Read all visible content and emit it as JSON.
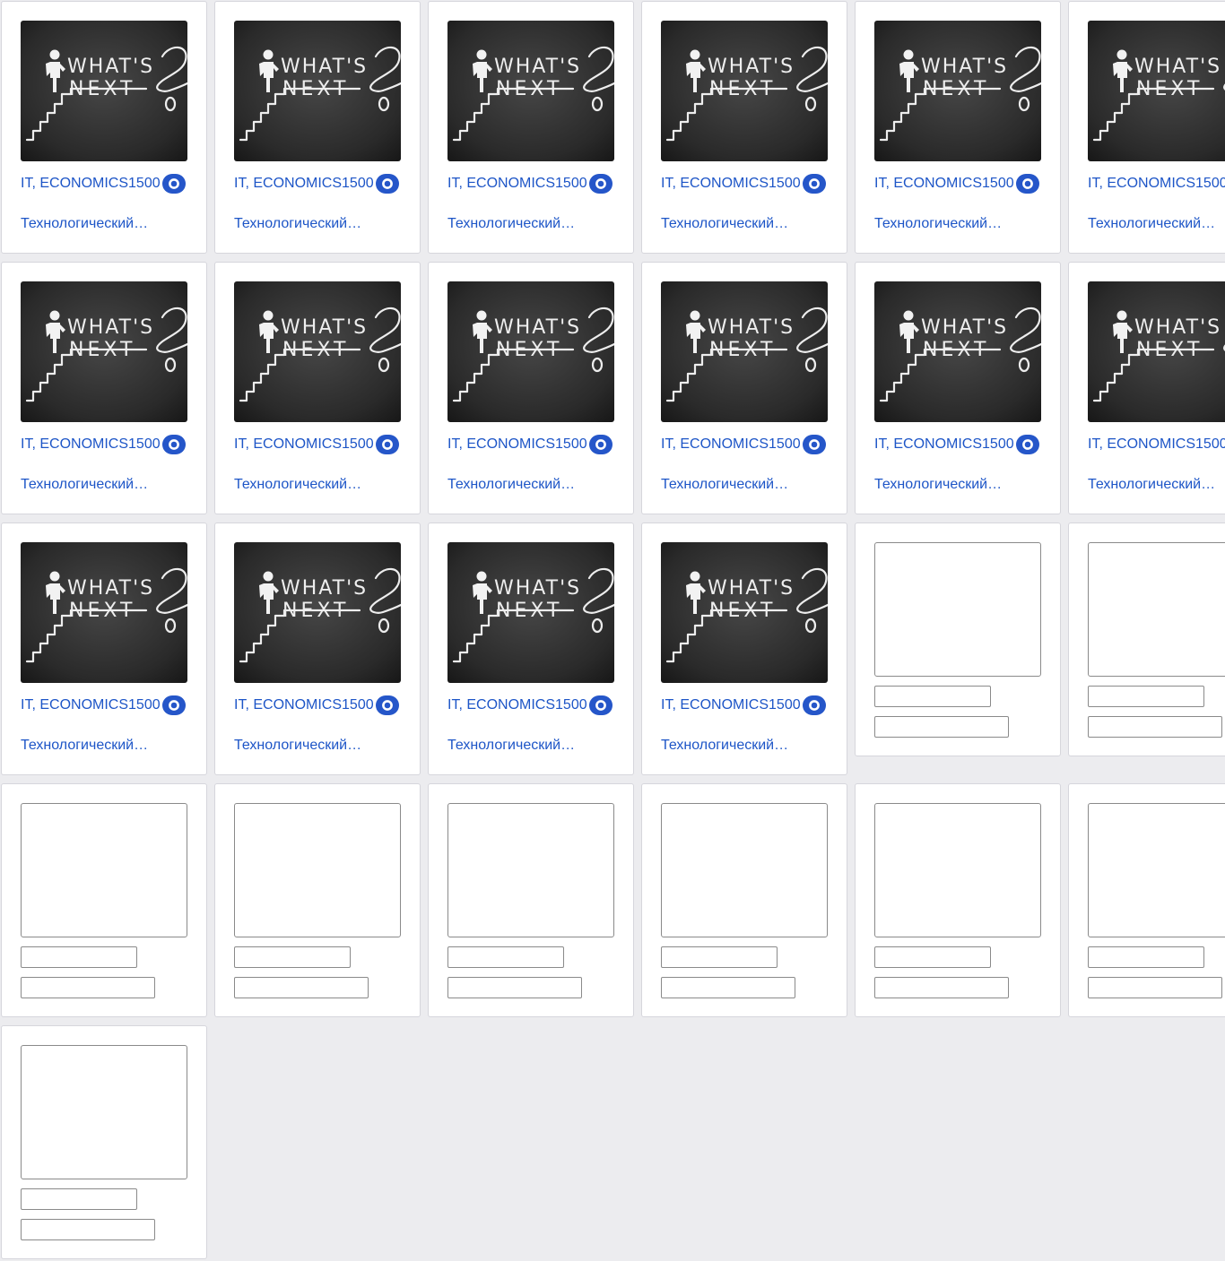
{
  "colors": {
    "page_background": "#ececef",
    "link": "#1d55c7",
    "badge": "#2556c9"
  },
  "thumbnail": {
    "text_line1": "WHAT'S",
    "text_line2": "NEXT",
    "glyph_question": "?",
    "icon": "chalkboard-whats-next"
  },
  "cards": [
    {
      "state": "loaded",
      "tags": "IT, ECONOMICS",
      "views": "1500",
      "title": "Технологический…"
    },
    {
      "state": "loaded",
      "tags": "IT, ECONOMICS",
      "views": "1500",
      "title": "Технологический…"
    },
    {
      "state": "loaded",
      "tags": "IT, ECONOMICS",
      "views": "1500",
      "title": "Технологический…"
    },
    {
      "state": "loaded",
      "tags": "IT, ECONOMICS",
      "views": "1500",
      "title": "Технологический…"
    },
    {
      "state": "loaded",
      "tags": "IT, ECONOMICS",
      "views": "1500",
      "title": "Технологический…"
    },
    {
      "state": "loaded",
      "tags": "IT, ECONOMICS",
      "views": "1500",
      "title": "Технологический…"
    },
    {
      "state": "loaded",
      "tags": "IT, ECONOMICS",
      "views": "1500",
      "title": "Технологический…"
    },
    {
      "state": "loaded",
      "tags": "IT, ECONOMICS",
      "views": "1500",
      "title": "Технологический…"
    },
    {
      "state": "loaded",
      "tags": "IT, ECONOMICS",
      "views": "1500",
      "title": "Технологический…"
    },
    {
      "state": "loaded",
      "tags": "IT, ECONOMICS",
      "views": "1500",
      "title": "Технологический…"
    },
    {
      "state": "loaded",
      "tags": "IT, ECONOMICS",
      "views": "1500",
      "title": "Технологический…"
    },
    {
      "state": "loaded",
      "tags": "IT, ECONOMICS",
      "views": "1500",
      "title": "Технологический…"
    },
    {
      "state": "loaded",
      "tags": "IT, ECONOMICS",
      "views": "1500",
      "title": "Технологический…"
    },
    {
      "state": "loaded",
      "tags": "IT, ECONOMICS",
      "views": "1500",
      "title": "Технологический…"
    },
    {
      "state": "loaded",
      "tags": "IT, ECONOMICS",
      "views": "1500",
      "title": "Технологический…"
    },
    {
      "state": "loaded",
      "tags": "IT, ECONOMICS",
      "views": "1500",
      "title": "Технологический…"
    },
    {
      "state": "skeleton"
    },
    {
      "state": "skeleton"
    },
    {
      "state": "skeleton"
    },
    {
      "state": "skeleton"
    },
    {
      "state": "skeleton"
    },
    {
      "state": "skeleton"
    },
    {
      "state": "skeleton"
    },
    {
      "state": "skeleton"
    },
    {
      "state": "skeleton"
    }
  ]
}
